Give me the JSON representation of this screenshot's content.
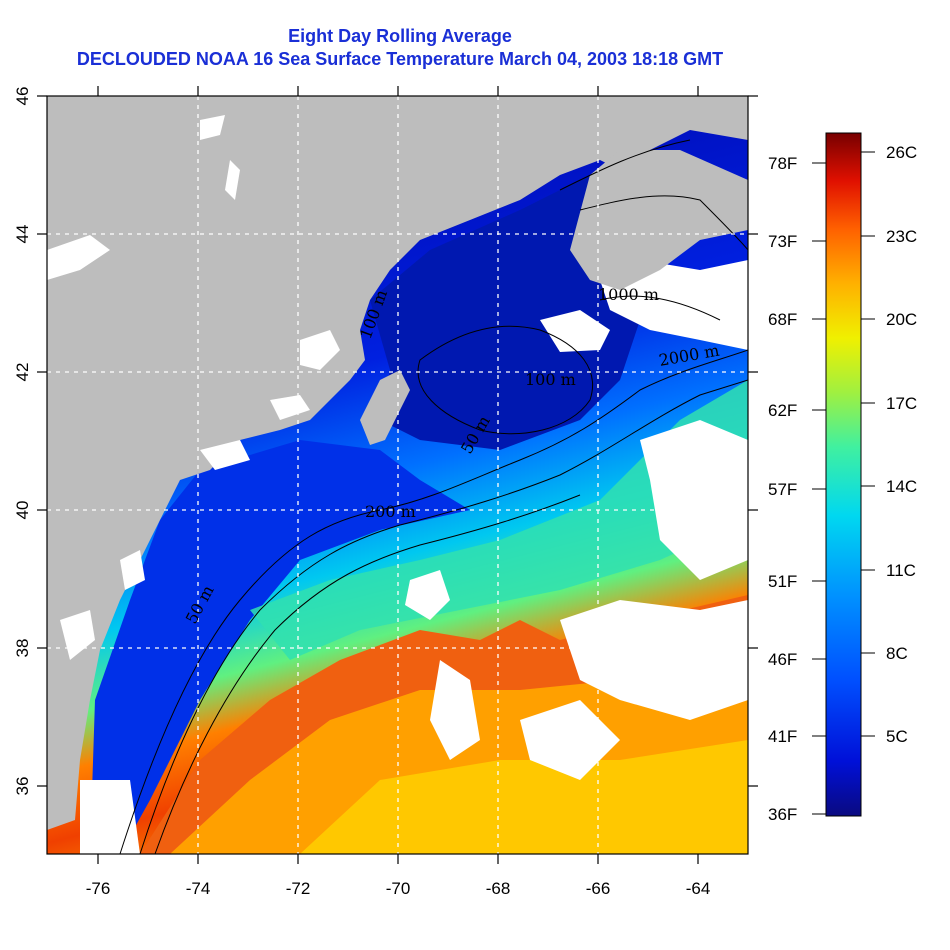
{
  "title_line1": "Eight Day Rolling Average",
  "title_line2": "DECLOUDED NOAA 16 Sea Surface Temperature March 04, 2003 18:18 GMT",
  "x_ticks": [
    "-76",
    "-74",
    "-72",
    "-70",
    "-68",
    "-66",
    "-64"
  ],
  "y_ticks": [
    "36",
    "38",
    "40",
    "42",
    "44",
    "46"
  ],
  "colorbar": {
    "fahrenheit_labels": [
      "78F",
      "73F",
      "68F",
      "62F",
      "57F",
      "51F",
      "46F",
      "41F",
      "36F"
    ],
    "celsius_labels": [
      "26C",
      "23C",
      "20C",
      "17C",
      "14C",
      "11C",
      "8C",
      "5C"
    ]
  },
  "contour_labels": [
    "50 m",
    "200 m",
    "1000 m",
    "50 m",
    "100 m",
    "2000 m",
    "100 m"
  ],
  "colors": {
    "land": "#bdbdbd",
    "cloud_mask": "#ffffff",
    "title": "#1a2fd6",
    "grid": "#ffffff"
  }
}
